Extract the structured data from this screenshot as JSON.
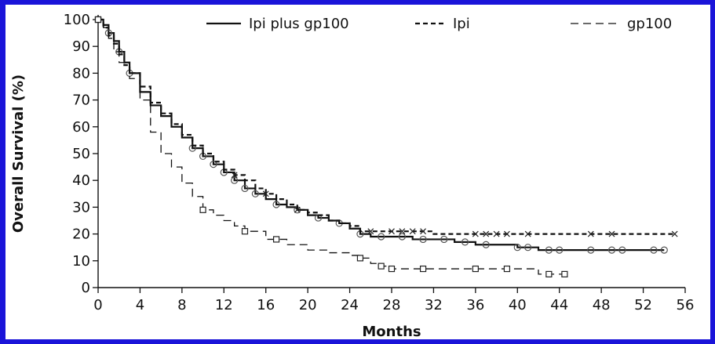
{
  "chart_data": {
    "type": "line",
    "xlabel": "Months",
    "ylabel": "Overall Survival (%)",
    "xlim": [
      0,
      56
    ],
    "ylim": [
      0,
      100
    ],
    "xticks": [
      0,
      4,
      8,
      12,
      16,
      20,
      24,
      28,
      32,
      36,
      40,
      44,
      48,
      52,
      56
    ],
    "yticks": [
      0,
      10,
      20,
      30,
      40,
      50,
      60,
      70,
      80,
      90,
      100
    ],
    "grid": false,
    "legend_position": "top",
    "series": [
      {
        "name": "Ipi plus gp100",
        "line_style": "solid",
        "censor_marker": "circle",
        "x": [
          0,
          0.5,
          1,
          1.5,
          2,
          2.5,
          3,
          4,
          5,
          6,
          7,
          8,
          9,
          10,
          11,
          12,
          13,
          14,
          15,
          16,
          17,
          18,
          19,
          20,
          21,
          22,
          23,
          24,
          25,
          26,
          28,
          30,
          32,
          34,
          36,
          37,
          38,
          40,
          42,
          44,
          46,
          48,
          50,
          52,
          54
        ],
        "y": [
          100,
          98,
          95,
          92,
          88,
          84,
          80,
          73,
          68,
          64,
          60,
          56,
          52,
          49,
          46,
          43,
          40,
          37,
          35,
          33,
          31,
          30,
          29,
          27,
          26,
          25,
          24,
          22,
          20,
          19,
          19,
          18,
          18,
          17,
          16,
          16,
          16,
          15,
          14,
          14,
          14,
          14,
          14,
          14,
          14
        ],
        "censors_x": [
          1,
          2,
          3,
          9,
          10,
          11,
          12,
          13,
          14,
          15,
          17,
          19,
          21,
          23,
          25,
          27,
          29,
          31,
          33,
          35,
          37,
          40,
          41,
          43,
          44,
          47,
          49,
          50,
          53,
          54
        ]
      },
      {
        "name": "Ipi",
        "line_style": "short-dash",
        "censor_marker": "x",
        "x": [
          0,
          0.5,
          1,
          1.5,
          2,
          2.5,
          3,
          4,
          5,
          6,
          7,
          8,
          9,
          10,
          11,
          12,
          13,
          14,
          15,
          16,
          17,
          18,
          19,
          20,
          21,
          22,
          23,
          24,
          25,
          28,
          32,
          36,
          40,
          44,
          48,
          52,
          55
        ],
        "y": [
          100,
          97,
          94,
          91,
          87,
          83,
          80,
          75,
          69,
          65,
          61,
          57,
          53,
          50,
          47,
          44,
          42,
          40,
          37,
          35,
          33,
          31,
          29,
          28,
          27,
          25,
          24,
          23,
          21,
          21,
          20,
          20,
          20,
          20,
          20,
          20,
          20
        ],
        "censors_x": [
          13,
          16,
          19,
          26,
          28,
          29,
          30,
          31,
          36,
          37,
          38,
          39,
          41,
          47,
          49,
          55
        ]
      },
      {
        "name": "gp100",
        "line_style": "long-dash",
        "censor_marker": "square",
        "x": [
          0,
          0.5,
          1,
          1.5,
          2,
          3,
          4,
          5,
          6,
          7,
          8,
          9,
          10,
          11,
          12,
          13,
          14,
          16,
          18,
          20,
          22,
          24,
          25,
          26,
          27,
          28,
          30,
          32,
          36,
          40,
          42,
          44.5
        ],
        "y": [
          100,
          97,
          93,
          88,
          84,
          78,
          70,
          58,
          50,
          45,
          39,
          34,
          29,
          27,
          25,
          23,
          21,
          18,
          16,
          14,
          13,
          12,
          11,
          9,
          8,
          7,
          7,
          7,
          7,
          7,
          5,
          5
        ],
        "censors_x": [
          10,
          14,
          17,
          25,
          27,
          28,
          31,
          36,
          39,
          43,
          44.5
        ]
      }
    ]
  }
}
